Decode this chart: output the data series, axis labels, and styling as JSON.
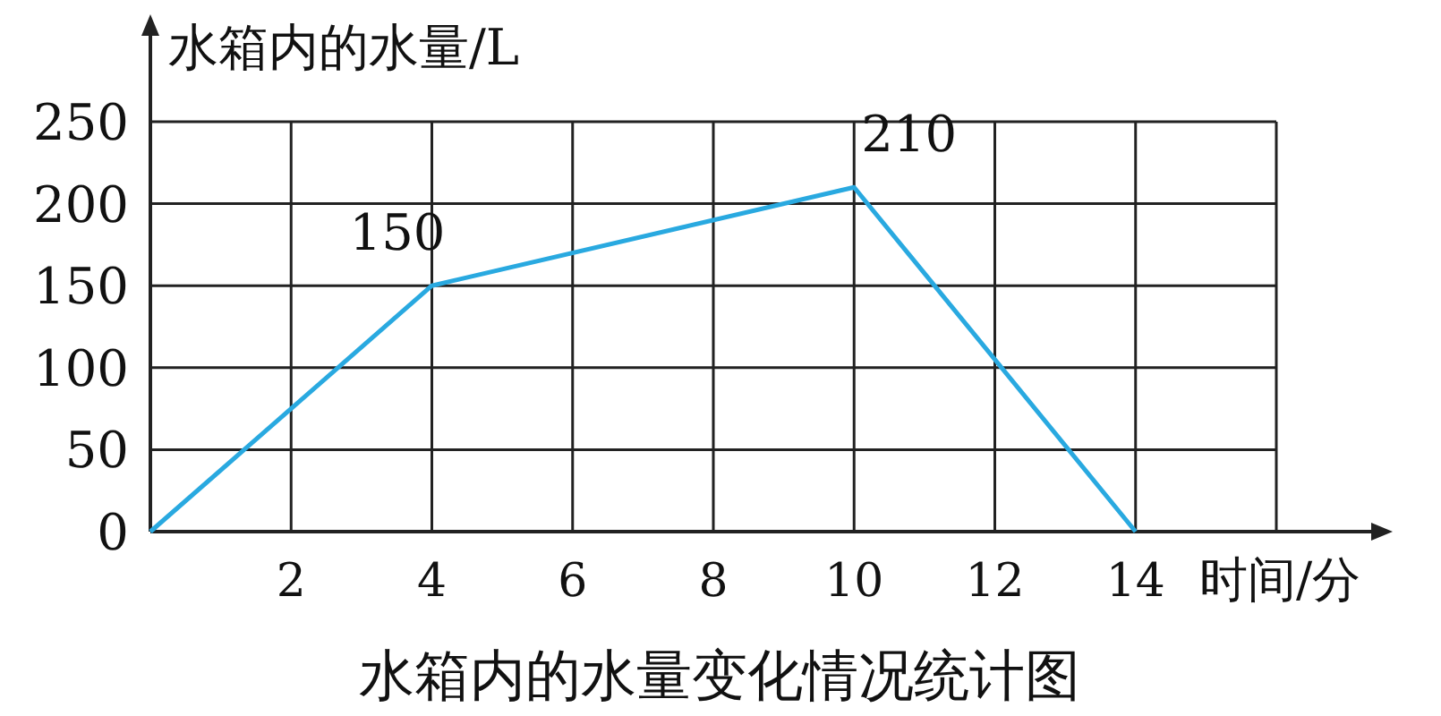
{
  "chart_data": {
    "type": "line",
    "title": "水箱内的水量变化情况统计图",
    "xlabel": "时间/分",
    "ylabel": "水箱内的水量/L",
    "x": [
      0,
      4,
      10,
      14
    ],
    "series": [
      {
        "color": "#29a9e0",
        "values": [
          0,
          150,
          210,
          0
        ],
        "value_labels": [
          null,
          "150",
          "210",
          null
        ]
      }
    ],
    "xlim": [
      0,
      16
    ],
    "xticks": [
      2,
      4,
      6,
      8,
      10,
      12,
      14,
      {
        "value": 16,
        "label": null
      }
    ],
    "ylim": [
      0,
      250
    ],
    "yticks": [
      0,
      50,
      100,
      150,
      200,
      250
    ],
    "grid": true,
    "marker": "none",
    "line_style": "solid"
  }
}
